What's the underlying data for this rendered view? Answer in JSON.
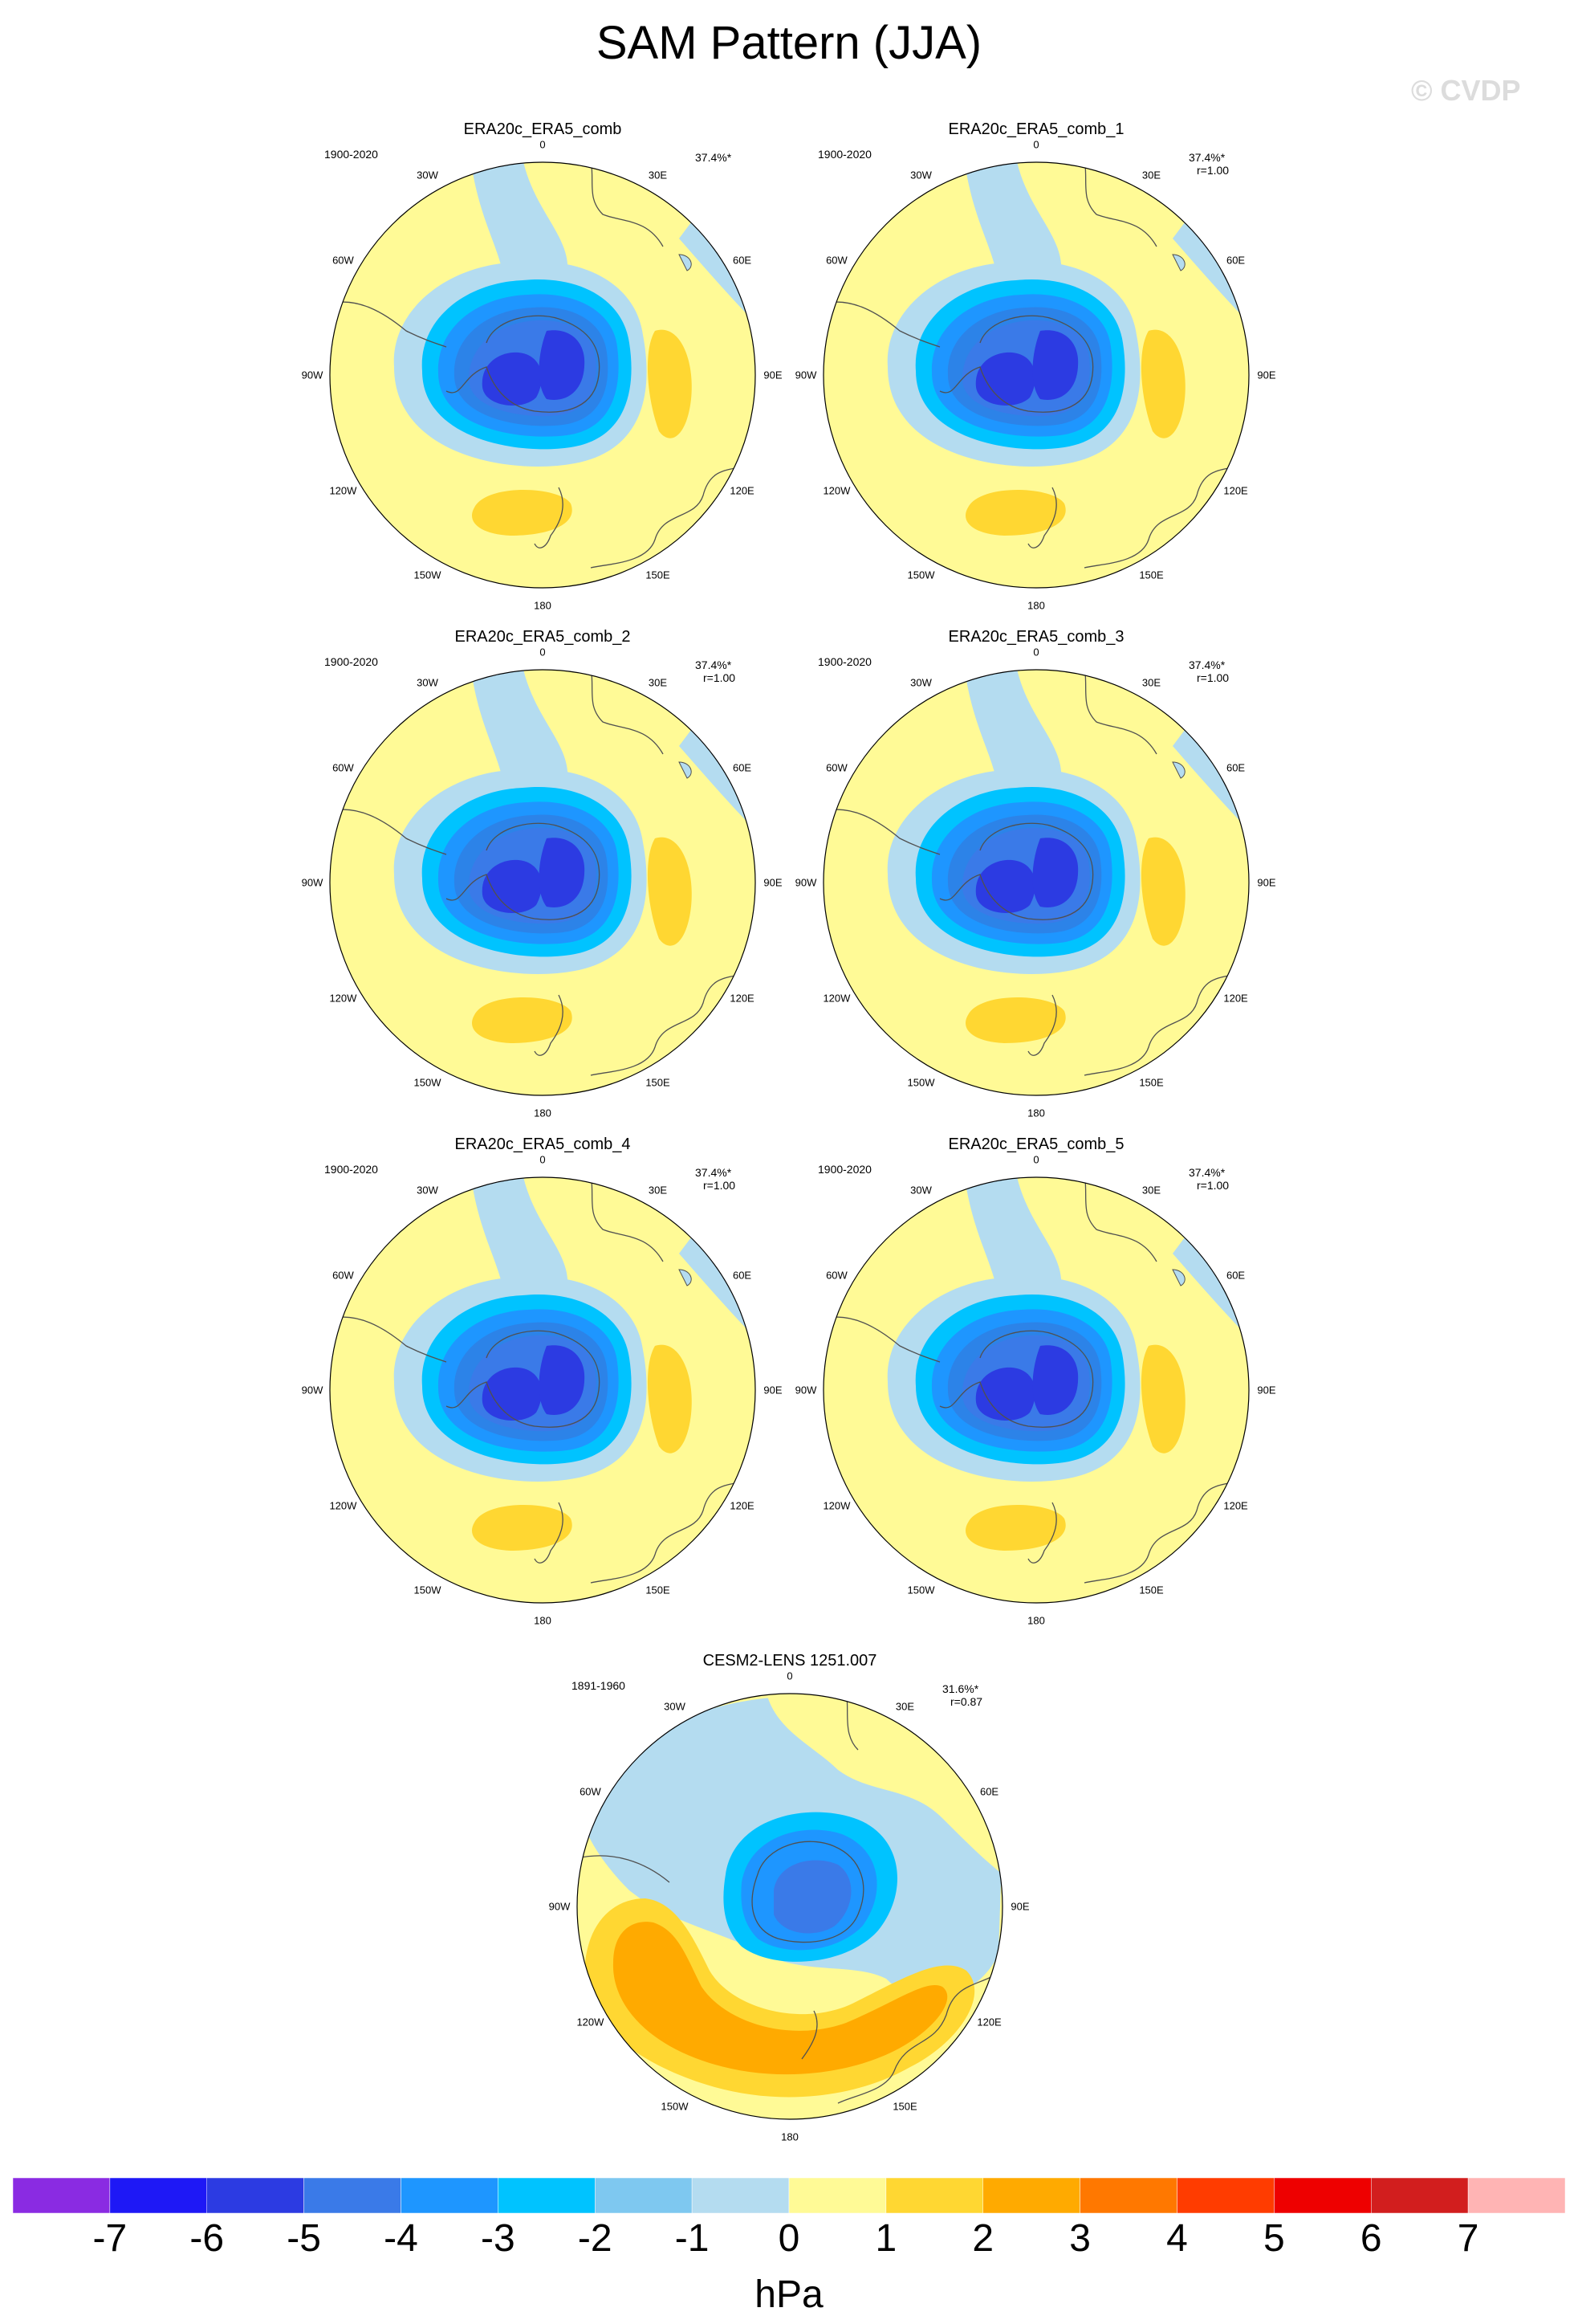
{
  "title": "SAM Pattern (JJA)",
  "watermark": "© CVDP",
  "units": "hPa",
  "colorbar": {
    "ticks": [
      "-7",
      "-6",
      "-5",
      "-4",
      "-3",
      "-2",
      "-1",
      "0",
      "1",
      "2",
      "3",
      "4",
      "5",
      "6",
      "7"
    ],
    "colors": [
      "#8a2be2",
      "#1e18f6",
      "#2c3be2",
      "#3a7ae8",
      "#1e96ff",
      "#00c3ff",
      "#7ec8f0",
      "#b4dcf0",
      "#fffa96",
      "#ffd732",
      "#ffaa00",
      "#ff7800",
      "#ff3c00",
      "#ee0000",
      "#d21e1e",
      "#ffb4b4"
    ]
  },
  "lon_labels": [
    "0",
    "30E",
    "60E",
    "90E",
    "120E",
    "150E",
    "180",
    "150W",
    "120W",
    "90W",
    "60W",
    "30W"
  ],
  "panels": [
    {
      "name": "ERA20c_ERA5_comb",
      "years": "1900-2020",
      "pct": "37.4%*",
      "corr": ""
    },
    {
      "name": "ERA20c_ERA5_comb_1",
      "years": "1900-2020",
      "pct": "37.4%*",
      "corr": "r=1.00"
    },
    {
      "name": "ERA20c_ERA5_comb_2",
      "years": "1900-2020",
      "pct": "37.4%*",
      "corr": "r=1.00"
    },
    {
      "name": "ERA20c_ERA5_comb_3",
      "years": "1900-2020",
      "pct": "37.4%*",
      "corr": "r=1.00"
    },
    {
      "name": "ERA20c_ERA5_comb_4",
      "years": "1900-2020",
      "pct": "37.4%*",
      "corr": "r=1.00"
    },
    {
      "name": "ERA20c_ERA5_comb_5",
      "years": "1900-2020",
      "pct": "37.4%*",
      "corr": "r=1.00"
    },
    {
      "name": "CESM2-LENS 1251.007",
      "years": "1891-1960",
      "pct": "31.6%*",
      "corr": "r=0.87"
    }
  ]
}
